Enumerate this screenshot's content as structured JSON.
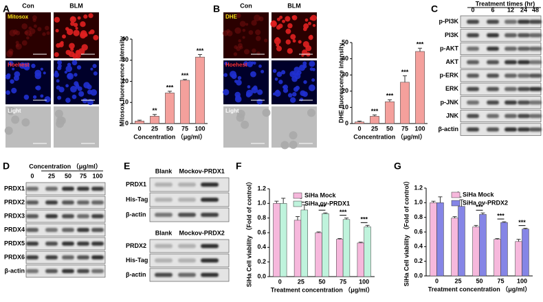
{
  "panel_letters": [
    "A",
    "B",
    "C",
    "D",
    "E",
    "F",
    "G"
  ],
  "micrographs": [
    {
      "columns": [
        "Con",
        "BLM"
      ],
      "rows": [
        "Mitosox",
        "Hoehest",
        "Light"
      ]
    },
    {
      "columns": [
        "Con",
        "BLM"
      ],
      "rows": [
        "DHE",
        "Hoehest",
        "Light"
      ]
    }
  ],
  "chart_data": [
    {
      "type": "bar",
      "ylabel": "Mitosox fluorescence intensity",
      "xlabel": "Concentration （μg/ml）",
      "categories": [
        "0",
        "25",
        "50",
        "75",
        "100"
      ],
      "values": [
        1.2,
        3.5,
        14.5,
        20.5,
        31.5
      ],
      "errors": [
        0.4,
        0.8,
        0.8,
        0.4,
        1.2
      ],
      "significance": [
        null,
        "**",
        "***",
        "***",
        "***"
      ],
      "color": "#f4a09c",
      "ylim": [
        0,
        40
      ],
      "yticks": [
        0,
        10,
        20,
        30,
        40
      ]
    },
    {
      "type": "bar",
      "ylabel": "DHE fluorescence intensity",
      "xlabel": "Concentration （μg/ml）",
      "categories": [
        "0",
        "25",
        "50",
        "75",
        "100"
      ],
      "values": [
        1,
        4.5,
        13.5,
        25.5,
        44.5
      ],
      "errors": [
        0.5,
        0.8,
        1.2,
        4,
        2
      ],
      "significance": [
        null,
        "***",
        "***",
        "***",
        "***"
      ],
      "color": "#f4a09c",
      "ylim": [
        0,
        50
      ],
      "yticks": [
        0,
        10,
        20,
        30,
        40,
        50
      ]
    },
    {
      "type": "bar",
      "ylabel": "SiHa Cell viability （Fold of control）",
      "xlabel": "Treatment concentration （μg/ml）",
      "categories": [
        "0",
        "25",
        "50",
        "75",
        "100"
      ],
      "series": [
        {
          "name": "SiHa Mock",
          "color": "#f6b8dc",
          "values": [
            1.0,
            0.77,
            0.6,
            0.51,
            0.46
          ],
          "errors": [
            0.03,
            0.05,
            0.01,
            0.01,
            0.01
          ]
        },
        {
          "name": "SiHa ov-PRDX1",
          "color": "#bff3dc",
          "values": [
            1.0,
            0.91,
            0.86,
            0.78,
            0.68
          ],
          "errors": [
            0.07,
            0.07,
            0.01,
            0.02,
            0.02
          ]
        }
      ],
      "significance": [
        null,
        "*",
        "***",
        "***",
        "***"
      ],
      "legend": "upper right",
      "ylim": [
        0,
        1.2
      ],
      "yticks": [
        {
          "value": 0,
          "label": "0.0"
        },
        0.2,
        0.4,
        0.6,
        0.8,
        {
          "value": 1,
          "label": "1.0"
        },
        1.2
      ]
    },
    {
      "type": "bar",
      "ylabel": "SiHa Cell viability （Fold of control）",
      "xlabel": "Treatment concentration （μg/ml）",
      "categories": [
        "0",
        "25",
        "50",
        "75",
        "100"
      ],
      "series": [
        {
          "name": "SiHa Mock",
          "color": "#f6b8dc",
          "values": [
            1.0,
            0.79,
            0.67,
            0.5,
            0.47
          ],
          "errors": [
            0.02,
            0.02,
            0.02,
            0.01,
            0.03
          ]
        },
        {
          "name": "SiHa ov-PRDX2",
          "color": "#8585e6",
          "values": [
            1.0,
            0.95,
            0.84,
            0.73,
            0.64
          ],
          "errors": [
            0.08,
            0.09,
            0.02,
            0.01,
            0.01
          ]
        }
      ],
      "significance": [
        null,
        "*",
        "***",
        "***",
        "***"
      ],
      "legend": "upper right",
      "ylim": [
        0,
        1.2
      ],
      "yticks": [
        {
          "value": 0,
          "label": "0.0"
        },
        0.2,
        0.4,
        0.6,
        0.8,
        {
          "value": 1,
          "label": "1.0"
        },
        1.2
      ]
    }
  ],
  "blots": [
    {
      "title": "Treatment times (hr)",
      "lanes": [
        "0",
        "6",
        "12",
        "24",
        "48"
      ],
      "rows": [
        "p-PI3K",
        "PI3K",
        "p-AKT",
        "AKT",
        "p-ERK",
        "ERK",
        "p-JNK",
        "JNK",
        "β-actin"
      ]
    },
    {
      "title": "Concentration （μg/ml）",
      "lanes": [
        "0",
        "25",
        "50",
        "75",
        "100"
      ],
      "rows": [
        "PRDX1",
        "PRDX2",
        "PRDX3",
        "PRDX4",
        "PRDX5",
        "PRDX6",
        "β-actin"
      ]
    },
    {
      "lanes": [
        "Blank",
        "Mock",
        "ov-PRDX1"
      ],
      "rows": [
        "PRDX1",
        "His-Tag",
        "β-actin"
      ]
    },
    {
      "lanes": [
        "Blank",
        "Mock",
        "ov-PRDX2"
      ],
      "rows": [
        "PRDX2",
        "His-Tag",
        "β-actin"
      ]
    }
  ]
}
